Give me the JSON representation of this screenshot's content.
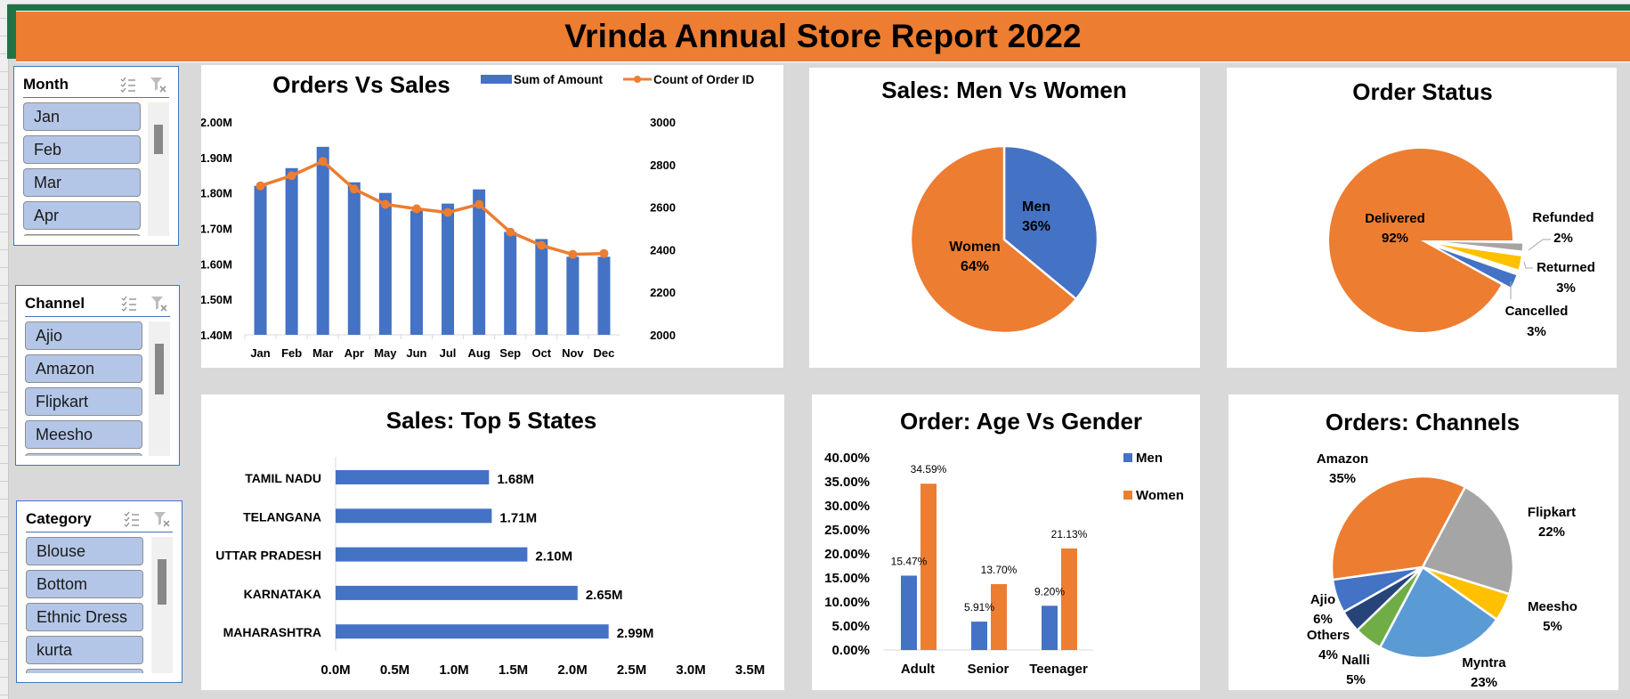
{
  "header": {
    "title": "Vrinda Annual Store Report 2022",
    "background": "#ed7d31"
  },
  "slicers": [
    {
      "title": "Month",
      "items": [
        "Jan",
        "Feb",
        "Mar",
        "Apr"
      ]
    },
    {
      "title": "Channel",
      "items": [
        "Ajio",
        "Amazon",
        "Flipkart",
        "Meesho"
      ]
    },
    {
      "title": "Category",
      "items": [
        "Blouse",
        "Bottom",
        "Ethnic Dress",
        "kurta"
      ]
    }
  ],
  "colors": {
    "blue": "#4472c4",
    "orange": "#ed7d31",
    "gray": "#a5a5a5",
    "yellow": "#ffc000",
    "lightblue": "#5b9bd5",
    "green": "#70ad47",
    "navy": "#264478"
  },
  "chart_data": [
    {
      "type": "bar+line",
      "title": "Orders Vs Sales",
      "categories": [
        "Jan",
        "Feb",
        "Mar",
        "Apr",
        "May",
        "Jun",
        "Jul",
        "Aug",
        "Sep",
        "Oct",
        "Nov",
        "Dec"
      ],
      "series": [
        {
          "name": "Sum of Amount",
          "type": "bar",
          "axis": "left",
          "values": [
            1.82,
            1.87,
            1.93,
            1.83,
            1.8,
            1.75,
            1.77,
            1.81,
            1.69,
            1.67,
            1.62,
            1.62
          ]
        },
        {
          "name": "Count of Order ID",
          "type": "line",
          "axis": "right",
          "values": [
            2700,
            2748,
            2815,
            2685,
            2613,
            2592,
            2575,
            2613,
            2483,
            2420,
            2378,
            2382
          ]
        }
      ],
      "yleft_ticks": [
        "2.00M",
        "1.90M",
        "1.80M",
        "1.70M",
        "1.60M",
        "1.50M",
        "1.40M"
      ],
      "yright_ticks": [
        "3000",
        "2800",
        "2600",
        "2400",
        "2200",
        "2000"
      ],
      "ylim_left": [
        1.4,
        2.0
      ],
      "ylim_right": [
        2000,
        3000
      ],
      "legend_position": "top-right"
    },
    {
      "type": "pie",
      "title": "Sales: Men Vs Women",
      "labels": [
        "Men",
        "Women"
      ],
      "values": [
        36,
        64
      ],
      "display": [
        "36%",
        "64%"
      ]
    },
    {
      "type": "pie",
      "title": "Order Status",
      "labels": [
        "Delivered",
        "Refunded",
        "Returned",
        "Cancelled"
      ],
      "values": [
        92,
        2,
        3,
        3
      ],
      "display": [
        "92%",
        "2%",
        "3%",
        "3%"
      ]
    },
    {
      "type": "bar",
      "orientation": "horizontal",
      "title": "Sales: Top 5 States",
      "categories": [
        "TAMIL NADU",
        "TELANGANA",
        "UTTAR PRADESH",
        "KARNATAKA",
        "MAHARASHTRA"
      ],
      "values": [
        1.68,
        1.71,
        2.1,
        2.65,
        2.99
      ],
      "data_labels": [
        "1.68M",
        "1.71M",
        "2.10M",
        "2.65M",
        "2.99M"
      ],
      "xticks": [
        "0.0M",
        "0.5M",
        "1.0M",
        "1.5M",
        "2.0M",
        "2.5M",
        "3.0M",
        "3.5M"
      ],
      "xlim": [
        0,
        3.5
      ]
    },
    {
      "type": "bar",
      "title": "Order: Age Vs Gender",
      "categories": [
        "Adult",
        "Senior",
        "Teenager"
      ],
      "series": [
        {
          "name": "Men",
          "values": [
            15.47,
            5.91,
            9.2
          ],
          "labels": [
            "15.47%",
            "5.91%",
            "9.20%"
          ]
        },
        {
          "name": "Women",
          "values": [
            34.59,
            13.7,
            21.13
          ],
          "labels": [
            "34.59%",
            "13.70%",
            "21.13%"
          ]
        }
      ],
      "yticks": [
        "40.00%",
        "35.00%",
        "30.00%",
        "25.00%",
        "20.00%",
        "15.00%",
        "10.00%",
        "5.00%",
        "0.00%"
      ],
      "ylim": [
        0,
        40
      ],
      "legend_position": "right"
    },
    {
      "type": "pie",
      "title": "Orders: Channels",
      "labels": [
        "Amazon",
        "Flipkart",
        "Meesho",
        "Myntra",
        "Nalli",
        "Others",
        "Ajio"
      ],
      "values": [
        35,
        22,
        5,
        23,
        5,
        4,
        6
      ],
      "display": [
        "35%",
        "22%",
        "5%",
        "23%",
        "5%",
        "4%",
        "6%"
      ]
    }
  ]
}
